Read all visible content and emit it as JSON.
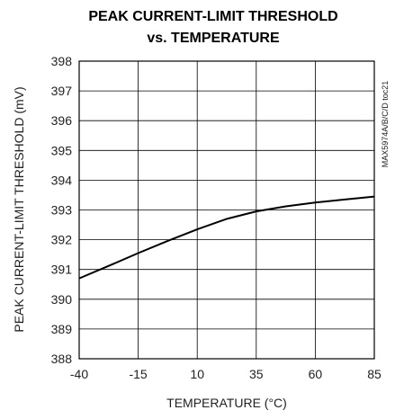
{
  "chart_data": {
    "type": "line",
    "title": "PEAK CURRENT-LIMIT THRESHOLD",
    "subtitle": "vs. TEMPERATURE",
    "x_label": "TEMPERATURE (°C)",
    "y_label": "PEAK CURRENT-LIMIT THRESHOLD (mV)",
    "annotation": "MAX5974A/B/C/D toc21",
    "x": [
      -40,
      -27.5,
      -15,
      -2.5,
      10,
      22.5,
      35,
      47.5,
      60,
      72.5,
      85
    ],
    "series": [
      {
        "name": "threshold",
        "color": "#000000",
        "values": [
          390.7,
          391.12,
          391.55,
          391.96,
          392.35,
          392.7,
          392.95,
          393.12,
          393.25,
          393.35,
          393.45
        ]
      }
    ],
    "xlim": [
      -40,
      85
    ],
    "xticks": [
      -40,
      -15,
      10,
      35,
      60,
      85
    ],
    "ylim": [
      388,
      398
    ],
    "yticks": [
      388,
      389,
      390,
      391,
      392,
      393,
      394,
      395,
      396,
      397,
      398
    ],
    "grid": true
  }
}
